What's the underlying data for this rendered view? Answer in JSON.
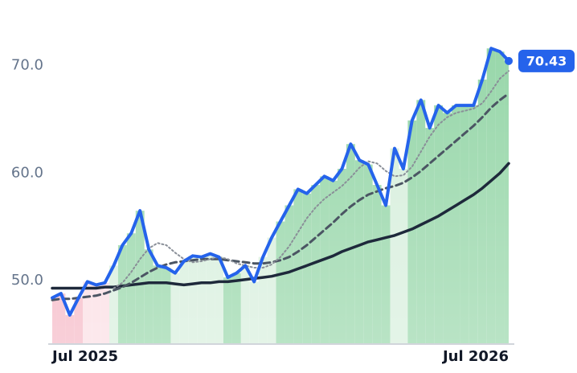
{
  "chart_data": {
    "type": "line",
    "categories": [
      "Jul 2025",
      null,
      null,
      null,
      null,
      null,
      null,
      null,
      null,
      null,
      null,
      null,
      null,
      null,
      null,
      null,
      null,
      null,
      null,
      null,
      null,
      null,
      null,
      null,
      null,
      null,
      null,
      null,
      null,
      null,
      null,
      null,
      null,
      null,
      null,
      null,
      null,
      null,
      null,
      null,
      null,
      null,
      null,
      null,
      null,
      null,
      null,
      null,
      null,
      null,
      null,
      null,
      "Jul 2026"
    ],
    "series": [
      {
        "color": "#2563eb",
        "style": "solid",
        "width": 4,
        "values": [
          48.4,
          48.8,
          46.8,
          48.4,
          49.9,
          49.6,
          49.8,
          51.4,
          53.3,
          54.4,
          56.5,
          52.9,
          51.4,
          51.2,
          50.7,
          51.8,
          52.3,
          52.2,
          52.5,
          52.2,
          50.3,
          50.7,
          51.4,
          49.9,
          52.2,
          54.0,
          55.5,
          57.0,
          58.5,
          58.1,
          58.9,
          59.7,
          59.3,
          60.4,
          62.7,
          61.2,
          60.8,
          58.9,
          57.0,
          62.3,
          60.4,
          64.9,
          66.8,
          64.2,
          66.3,
          65.6,
          66.3,
          66.3,
          66.3,
          68.7,
          71.6,
          71.3,
          70.43
        ]
      },
      {
        "color": "#8a8f98",
        "style": "dotted",
        "width": 2,
        "values": [
          null,
          null,
          null,
          null,
          null,
          null,
          null,
          49.3,
          49.8,
          50.8,
          52,
          53,
          53.5,
          53.3,
          52.6,
          52,
          51.7,
          51.8,
          52,
          52.2,
          52,
          51.6,
          51.4,
          51.2,
          51.2,
          51.5,
          52.2,
          53.2,
          54.5,
          55.8,
          56.8,
          57.6,
          58.2,
          58.8,
          59.6,
          60.5,
          61.1,
          60.9,
          60.2,
          59.7,
          59.8,
          60.6,
          62,
          63.4,
          64.5,
          65.2,
          65.6,
          65.8,
          66,
          66.5,
          67.6,
          68.8,
          69.5
        ]
      },
      {
        "color": "#4b5563",
        "style": "dashed",
        "width": 3,
        "values": [
          48.2,
          48.3,
          48.3,
          48.4,
          48.5,
          48.6,
          48.8,
          49.1,
          49.4,
          49.8,
          50.3,
          50.8,
          51.2,
          51.5,
          51.7,
          51.8,
          51.9,
          52.0,
          52.0,
          52.0,
          51.9,
          51.8,
          51.7,
          51.6,
          51.6,
          51.7,
          51.9,
          52.2,
          52.7,
          53.3,
          54,
          54.7,
          55.4,
          56.2,
          56.9,
          57.5,
          58,
          58.3,
          58.6,
          58.8,
          59.1,
          59.6,
          60.2,
          60.9,
          61.6,
          62.3,
          63,
          63.7,
          64.4,
          65.2,
          66.1,
          66.8,
          67.4
        ]
      },
      {
        "color": "#1e293b",
        "style": "solid",
        "width": 3.5,
        "values": [
          49.3,
          49.3,
          49.3,
          49.3,
          49.3,
          49.3,
          49.4,
          49.4,
          49.5,
          49.6,
          49.7,
          49.8,
          49.8,
          49.8,
          49.7,
          49.6,
          49.7,
          49.8,
          49.8,
          49.9,
          49.9,
          50,
          50.1,
          50.2,
          50.3,
          50.4,
          50.6,
          50.8,
          51.1,
          51.4,
          51.7,
          52,
          52.3,
          52.7,
          53,
          53.3,
          53.6,
          53.8,
          54,
          54.2,
          54.5,
          54.8,
          55.2,
          55.6,
          56,
          56.5,
          57,
          57.5,
          58,
          58.6,
          59.3,
          60,
          60.9
        ]
      }
    ],
    "area_colors": [
      "#f5b5c3",
      "#f5b5c3",
      "#f5b5c3",
      "#f5b5c3",
      "#fbdce2",
      "#fbdce2",
      "#fbdce2",
      "#d5eedb",
      "#93d5a6",
      "#93d5a6",
      "#93d5a6",
      "#93d5a6",
      "#93d5a6",
      "#93d5a6",
      "#d5eedb",
      "#d5eedb",
      "#d5eedb",
      "#d5eedb",
      "#d5eedb",
      "#d5eedb",
      "#93d5a6",
      "#93d5a6",
      "#d5eedb",
      "#d5eedb",
      "#d5eedb",
      "#d5eedb",
      "#93d5a6",
      "#93d5a6",
      "#93d5a6",
      "#93d5a6",
      "#93d5a6",
      "#93d5a6",
      "#93d5a6",
      "#93d5a6",
      "#93d5a6",
      "#93d5a6",
      "#93d5a6",
      "#93d5a6",
      "#93d5a6",
      "#d5eedb",
      "#d5eedb",
      "#93d5a6",
      "#93d5a6",
      "#93d5a6",
      "#93d5a6",
      "#93d5a6",
      "#93d5a6",
      "#93d5a6",
      "#93d5a6",
      "#93d5a6",
      "#93d5a6",
      "#93d5a6",
      "#93d5a6"
    ],
    "ylim": [
      44.1,
      76.1
    ],
    "yticks": [
      {
        "value": 50,
        "label": "50.0"
      },
      {
        "value": 60,
        "label": "60.0"
      },
      {
        "value": 70,
        "label": "70.0"
      }
    ],
    "grid": false
  }
}
